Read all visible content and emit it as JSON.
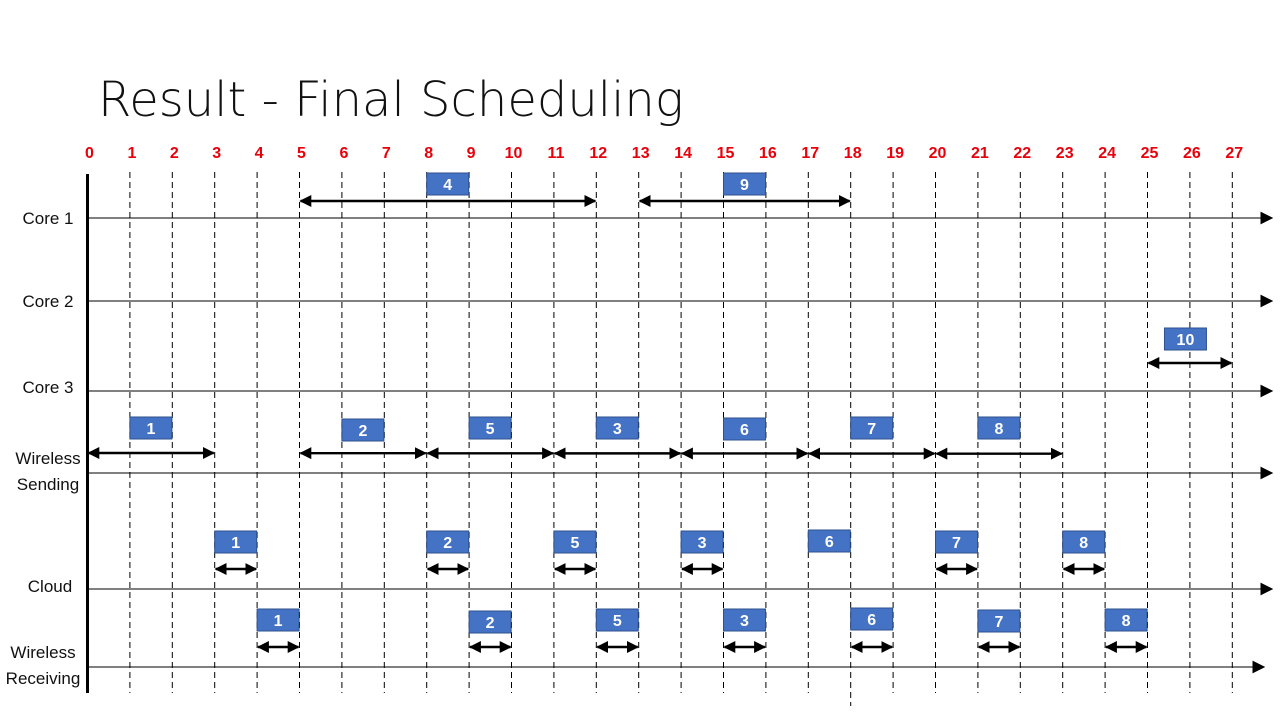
{
  "title": "Result - Final Scheduling",
  "ticks": [
    "0",
    "1",
    "2",
    "3",
    "4",
    "5",
    "6",
    "7",
    "8",
    "9",
    "10",
    "11",
    "12",
    "13",
    "14",
    "15",
    "16",
    "17",
    "18",
    "19",
    "20",
    "21",
    "22",
    "23",
    "24",
    "25",
    "26",
    "27"
  ],
  "lanes": [
    {
      "id": "core1",
      "lines": [
        "Core 1"
      ]
    },
    {
      "id": "core2",
      "lines": [
        "Core 2"
      ]
    },
    {
      "id": "core3",
      "lines": [
        "Core 3"
      ]
    },
    {
      "id": "wireless-sending",
      "lines": [
        "Wireless",
        "Sending"
      ]
    },
    {
      "id": "cloud",
      "lines": [
        "Cloud"
      ]
    },
    {
      "id": "wireless-receiving",
      "lines": [
        "Wireless",
        "Receiving"
      ]
    }
  ],
  "colors": {
    "tick": "#e8000b",
    "task_fill": "#4472c4",
    "task_border": "#2f528f",
    "line": "#000000"
  },
  "tasks": [
    {
      "lane": "core1",
      "label": "4",
      "start": 5,
      "end": 12
    },
    {
      "lane": "core1",
      "label": "9",
      "start": 13,
      "end": 18
    },
    {
      "lane": "core3",
      "label": "10",
      "start": 25,
      "end": 27
    },
    {
      "lane": "wireless-sending",
      "label": "1",
      "start": 0,
      "end": 3
    },
    {
      "lane": "wireless-sending",
      "label": "2",
      "start": 5,
      "end": 8
    },
    {
      "lane": "wireless-sending",
      "label": "5",
      "start": 8,
      "end": 11
    },
    {
      "lane": "wireless-sending",
      "label": "3",
      "start": 11,
      "end": 14
    },
    {
      "lane": "wireless-sending",
      "label": "6",
      "start": 14,
      "end": 17
    },
    {
      "lane": "wireless-sending",
      "label": "7",
      "start": 17,
      "end": 20
    },
    {
      "lane": "wireless-sending",
      "label": "8",
      "start": 20,
      "end": 23
    },
    {
      "lane": "cloud",
      "label": "1",
      "start": 3,
      "end": 4
    },
    {
      "lane": "cloud",
      "label": "2",
      "start": 8,
      "end": 9
    },
    {
      "lane": "cloud",
      "label": "5",
      "start": 11,
      "end": 12
    },
    {
      "lane": "cloud",
      "label": "3",
      "start": 14,
      "end": 15
    },
    {
      "lane": "cloud",
      "label": "6",
      "start": 17,
      "end": 18,
      "no_arrow": true
    },
    {
      "lane": "cloud",
      "label": "7",
      "start": 20,
      "end": 21
    },
    {
      "lane": "cloud",
      "label": "8",
      "start": 23,
      "end": 24
    },
    {
      "lane": "wireless-receiving",
      "label": "1",
      "start": 4,
      "end": 5
    },
    {
      "lane": "wireless-receiving",
      "label": "2",
      "start": 9,
      "end": 10
    },
    {
      "lane": "wireless-receiving",
      "label": "5",
      "start": 12,
      "end": 13
    },
    {
      "lane": "wireless-receiving",
      "label": "3",
      "start": 15,
      "end": 16
    },
    {
      "lane": "wireless-receiving",
      "label": "6",
      "start": 18,
      "end": 19
    },
    {
      "lane": "wireless-receiving",
      "label": "7",
      "start": 21,
      "end": 22
    },
    {
      "lane": "wireless-receiving",
      "label": "8",
      "start": 24,
      "end": 25
    }
  ]
}
